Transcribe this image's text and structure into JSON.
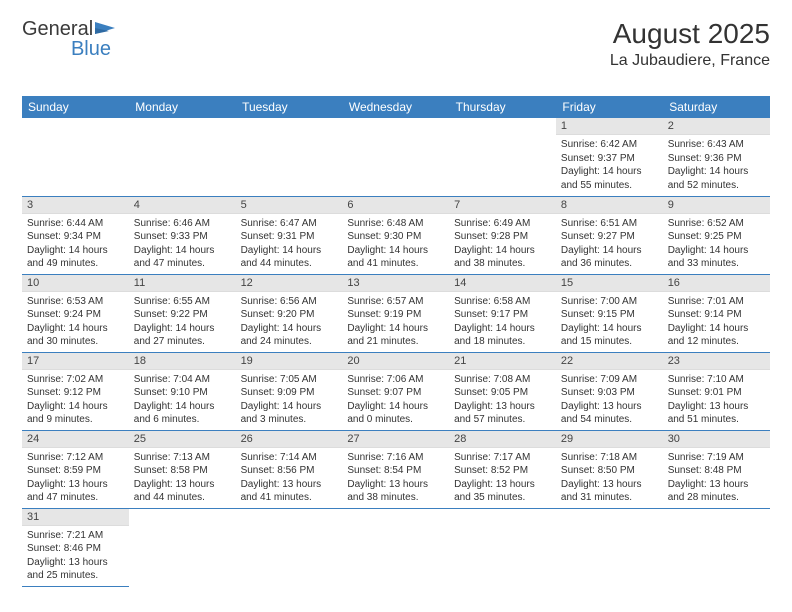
{
  "logo": {
    "part1": "General",
    "part2": "Blue"
  },
  "header": {
    "month_title": "August 2025",
    "location": "La Jubaudiere, France"
  },
  "colors": {
    "header_bg": "#3b7fbf",
    "header_text": "#ffffff",
    "daynum_bg": "#e6e6e6",
    "row_border": "#3b7fbf",
    "text": "#333333"
  },
  "weekdays": [
    "Sunday",
    "Monday",
    "Tuesday",
    "Wednesday",
    "Thursday",
    "Friday",
    "Saturday"
  ],
  "weeks": [
    [
      {
        "n": "",
        "sr": "",
        "ss": "",
        "dl": ""
      },
      {
        "n": "",
        "sr": "",
        "ss": "",
        "dl": ""
      },
      {
        "n": "",
        "sr": "",
        "ss": "",
        "dl": ""
      },
      {
        "n": "",
        "sr": "",
        "ss": "",
        "dl": ""
      },
      {
        "n": "",
        "sr": "",
        "ss": "",
        "dl": ""
      },
      {
        "n": "1",
        "sr": "Sunrise: 6:42 AM",
        "ss": "Sunset: 9:37 PM",
        "dl": "Daylight: 14 hours and 55 minutes."
      },
      {
        "n": "2",
        "sr": "Sunrise: 6:43 AM",
        "ss": "Sunset: 9:36 PM",
        "dl": "Daylight: 14 hours and 52 minutes."
      }
    ],
    [
      {
        "n": "3",
        "sr": "Sunrise: 6:44 AM",
        "ss": "Sunset: 9:34 PM",
        "dl": "Daylight: 14 hours and 49 minutes."
      },
      {
        "n": "4",
        "sr": "Sunrise: 6:46 AM",
        "ss": "Sunset: 9:33 PM",
        "dl": "Daylight: 14 hours and 47 minutes."
      },
      {
        "n": "5",
        "sr": "Sunrise: 6:47 AM",
        "ss": "Sunset: 9:31 PM",
        "dl": "Daylight: 14 hours and 44 minutes."
      },
      {
        "n": "6",
        "sr": "Sunrise: 6:48 AM",
        "ss": "Sunset: 9:30 PM",
        "dl": "Daylight: 14 hours and 41 minutes."
      },
      {
        "n": "7",
        "sr": "Sunrise: 6:49 AM",
        "ss": "Sunset: 9:28 PM",
        "dl": "Daylight: 14 hours and 38 minutes."
      },
      {
        "n": "8",
        "sr": "Sunrise: 6:51 AM",
        "ss": "Sunset: 9:27 PM",
        "dl": "Daylight: 14 hours and 36 minutes."
      },
      {
        "n": "9",
        "sr": "Sunrise: 6:52 AM",
        "ss": "Sunset: 9:25 PM",
        "dl": "Daylight: 14 hours and 33 minutes."
      }
    ],
    [
      {
        "n": "10",
        "sr": "Sunrise: 6:53 AM",
        "ss": "Sunset: 9:24 PM",
        "dl": "Daylight: 14 hours and 30 minutes."
      },
      {
        "n": "11",
        "sr": "Sunrise: 6:55 AM",
        "ss": "Sunset: 9:22 PM",
        "dl": "Daylight: 14 hours and 27 minutes."
      },
      {
        "n": "12",
        "sr": "Sunrise: 6:56 AM",
        "ss": "Sunset: 9:20 PM",
        "dl": "Daylight: 14 hours and 24 minutes."
      },
      {
        "n": "13",
        "sr": "Sunrise: 6:57 AM",
        "ss": "Sunset: 9:19 PM",
        "dl": "Daylight: 14 hours and 21 minutes."
      },
      {
        "n": "14",
        "sr": "Sunrise: 6:58 AM",
        "ss": "Sunset: 9:17 PM",
        "dl": "Daylight: 14 hours and 18 minutes."
      },
      {
        "n": "15",
        "sr": "Sunrise: 7:00 AM",
        "ss": "Sunset: 9:15 PM",
        "dl": "Daylight: 14 hours and 15 minutes."
      },
      {
        "n": "16",
        "sr": "Sunrise: 7:01 AM",
        "ss": "Sunset: 9:14 PM",
        "dl": "Daylight: 14 hours and 12 minutes."
      }
    ],
    [
      {
        "n": "17",
        "sr": "Sunrise: 7:02 AM",
        "ss": "Sunset: 9:12 PM",
        "dl": "Daylight: 14 hours and 9 minutes."
      },
      {
        "n": "18",
        "sr": "Sunrise: 7:04 AM",
        "ss": "Sunset: 9:10 PM",
        "dl": "Daylight: 14 hours and 6 minutes."
      },
      {
        "n": "19",
        "sr": "Sunrise: 7:05 AM",
        "ss": "Sunset: 9:09 PM",
        "dl": "Daylight: 14 hours and 3 minutes."
      },
      {
        "n": "20",
        "sr": "Sunrise: 7:06 AM",
        "ss": "Sunset: 9:07 PM",
        "dl": "Daylight: 14 hours and 0 minutes."
      },
      {
        "n": "21",
        "sr": "Sunrise: 7:08 AM",
        "ss": "Sunset: 9:05 PM",
        "dl": "Daylight: 13 hours and 57 minutes."
      },
      {
        "n": "22",
        "sr": "Sunrise: 7:09 AM",
        "ss": "Sunset: 9:03 PM",
        "dl": "Daylight: 13 hours and 54 minutes."
      },
      {
        "n": "23",
        "sr": "Sunrise: 7:10 AM",
        "ss": "Sunset: 9:01 PM",
        "dl": "Daylight: 13 hours and 51 minutes."
      }
    ],
    [
      {
        "n": "24",
        "sr": "Sunrise: 7:12 AM",
        "ss": "Sunset: 8:59 PM",
        "dl": "Daylight: 13 hours and 47 minutes."
      },
      {
        "n": "25",
        "sr": "Sunrise: 7:13 AM",
        "ss": "Sunset: 8:58 PM",
        "dl": "Daylight: 13 hours and 44 minutes."
      },
      {
        "n": "26",
        "sr": "Sunrise: 7:14 AM",
        "ss": "Sunset: 8:56 PM",
        "dl": "Daylight: 13 hours and 41 minutes."
      },
      {
        "n": "27",
        "sr": "Sunrise: 7:16 AM",
        "ss": "Sunset: 8:54 PM",
        "dl": "Daylight: 13 hours and 38 minutes."
      },
      {
        "n": "28",
        "sr": "Sunrise: 7:17 AM",
        "ss": "Sunset: 8:52 PM",
        "dl": "Daylight: 13 hours and 35 minutes."
      },
      {
        "n": "29",
        "sr": "Sunrise: 7:18 AM",
        "ss": "Sunset: 8:50 PM",
        "dl": "Daylight: 13 hours and 31 minutes."
      },
      {
        "n": "30",
        "sr": "Sunrise: 7:19 AM",
        "ss": "Sunset: 8:48 PM",
        "dl": "Daylight: 13 hours and 28 minutes."
      }
    ],
    [
      {
        "n": "31",
        "sr": "Sunrise: 7:21 AM",
        "ss": "Sunset: 8:46 PM",
        "dl": "Daylight: 13 hours and 25 minutes."
      },
      {
        "n": "",
        "sr": "",
        "ss": "",
        "dl": ""
      },
      {
        "n": "",
        "sr": "",
        "ss": "",
        "dl": ""
      },
      {
        "n": "",
        "sr": "",
        "ss": "",
        "dl": ""
      },
      {
        "n": "",
        "sr": "",
        "ss": "",
        "dl": ""
      },
      {
        "n": "",
        "sr": "",
        "ss": "",
        "dl": ""
      },
      {
        "n": "",
        "sr": "",
        "ss": "",
        "dl": ""
      }
    ]
  ]
}
